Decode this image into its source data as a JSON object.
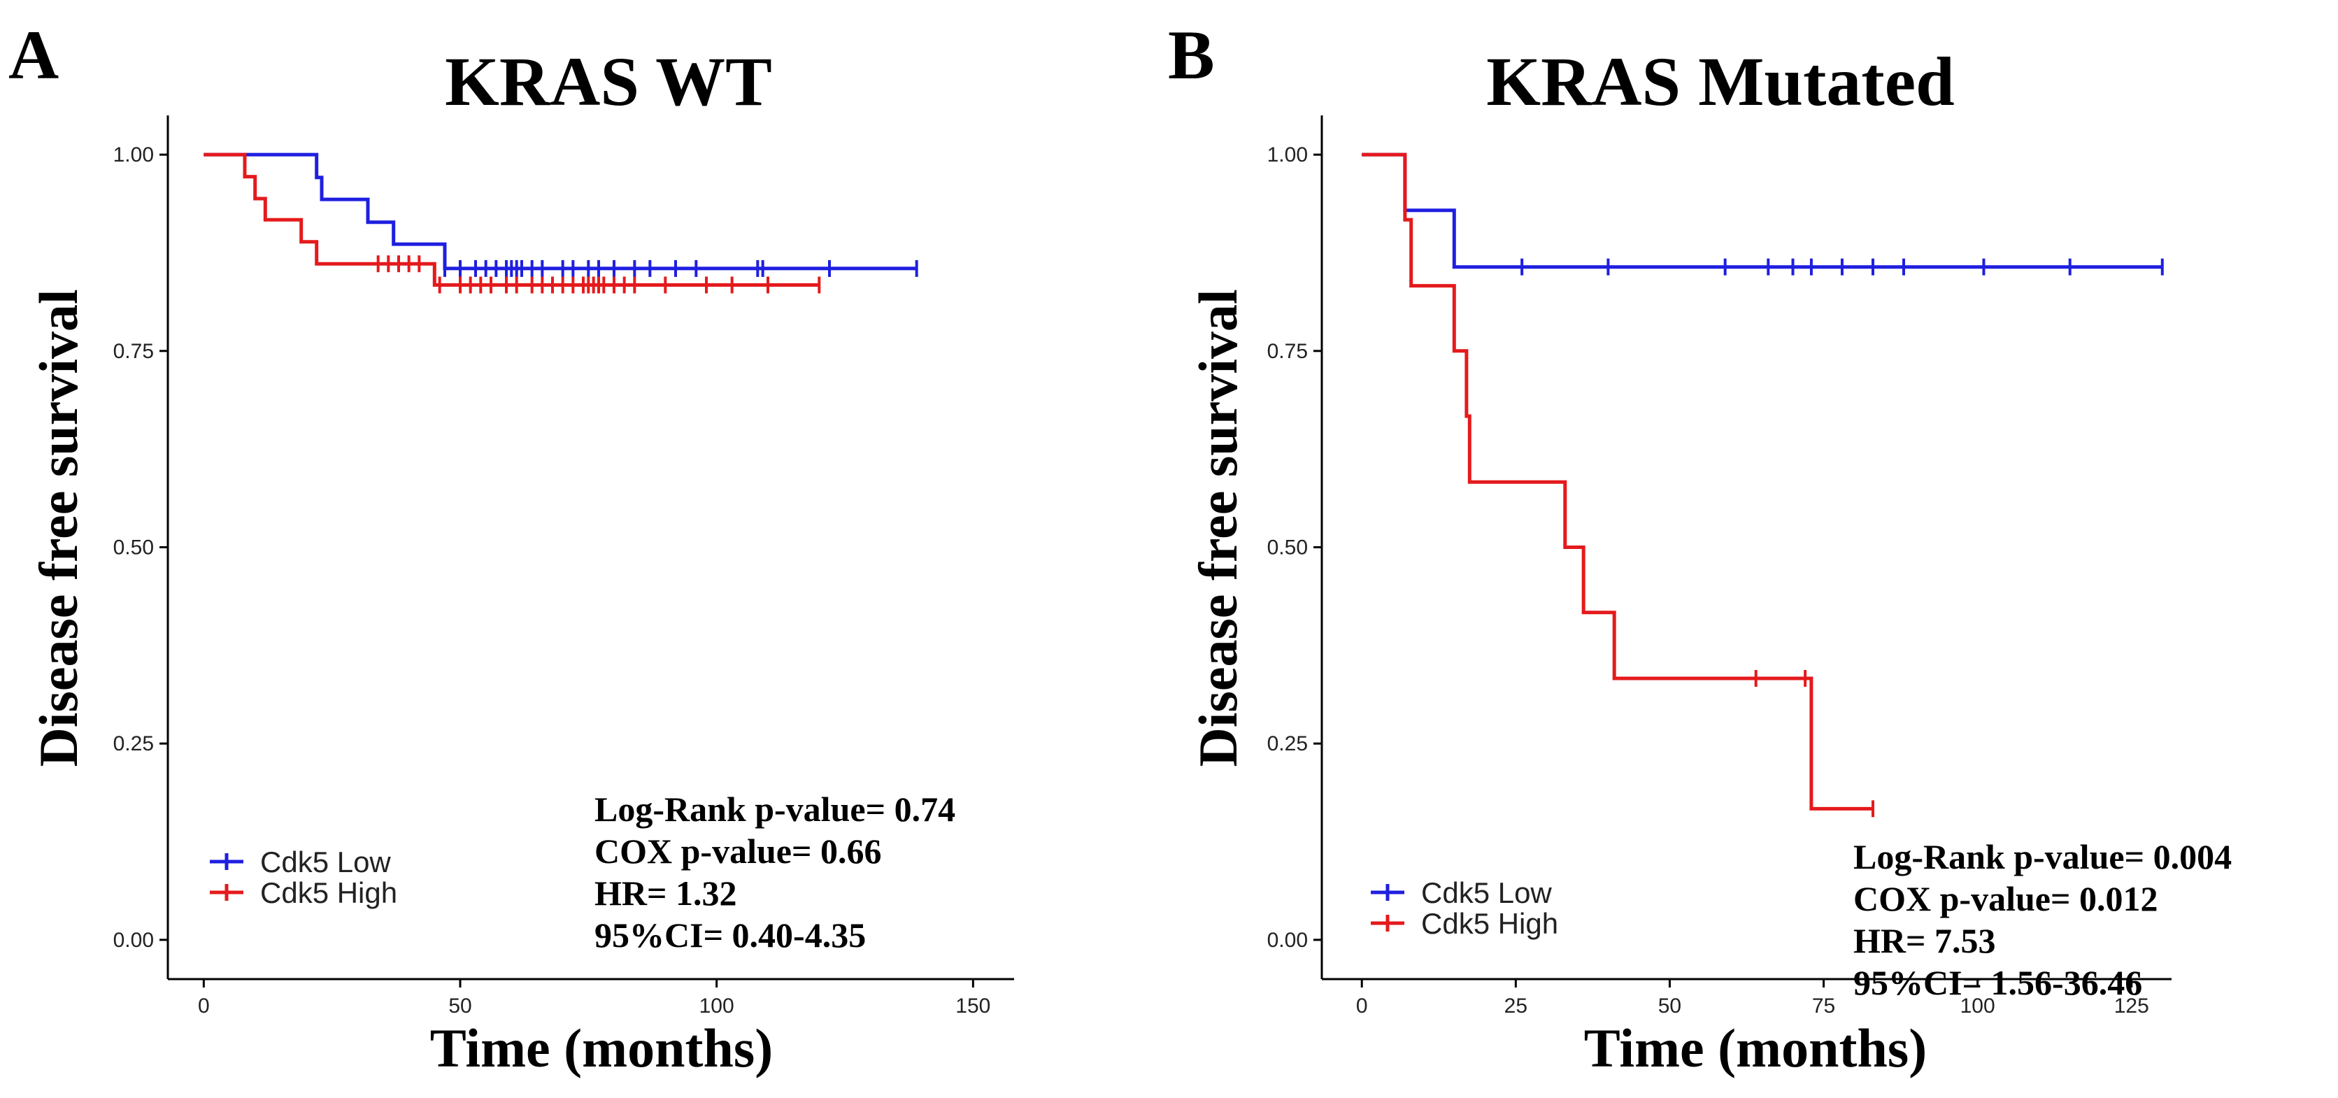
{
  "chart_data": [
    {
      "type": "line",
      "panel": "A",
      "title": "KRAS WT",
      "xlabel": "Time (months)",
      "ylabel": "Disease free survival",
      "xlim": [
        -7,
        158
      ],
      "ylim": [
        -0.05,
        1.05
      ],
      "x_ticks": [
        0,
        50,
        100,
        150
      ],
      "y_ticks": [
        0.0,
        0.25,
        0.5,
        0.75,
        1.0
      ],
      "y_tick_labels": [
        "0.00",
        "0.25",
        "0.50",
        "0.75",
        "1.00"
      ],
      "series": [
        {
          "name": "Cdk5 Low",
          "color": "#1f1fe0",
          "steps": [
            [
              0,
              1.0
            ],
            [
              22,
              1.0
            ],
            [
              22,
              0.971
            ],
            [
              23,
              0.971
            ],
            [
              23,
              0.943
            ],
            [
              32,
              0.943
            ],
            [
              32,
              0.914
            ],
            [
              37,
              0.914
            ],
            [
              37,
              0.886
            ],
            [
              47,
              0.886
            ],
            [
              47,
              0.855
            ],
            [
              139,
              0.855
            ]
          ],
          "censor": [
            47,
            50,
            53,
            55,
            57,
            59,
            60,
            61,
            62,
            64,
            66,
            70,
            72,
            75,
            77,
            80,
            84,
            87,
            92,
            96,
            108,
            109,
            122,
            139
          ]
        },
        {
          "name": "Cdk5 High",
          "color": "#e41a1c",
          "steps": [
            [
              0,
              1.0
            ],
            [
              8,
              1.0
            ],
            [
              8,
              0.972
            ],
            [
              10,
              0.972
            ],
            [
              10,
              0.944
            ],
            [
              12,
              0.944
            ],
            [
              12,
              0.917
            ],
            [
              19,
              0.917
            ],
            [
              19,
              0.889
            ],
            [
              22,
              0.889
            ],
            [
              22,
              0.861
            ],
            [
              45,
              0.861
            ],
            [
              45,
              0.834
            ],
            [
              120,
              0.834
            ]
          ],
          "censor": [
            34,
            36,
            38,
            40,
            42,
            46,
            50,
            52,
            54,
            56,
            59,
            61,
            64,
            66,
            68,
            70,
            72,
            74,
            75,
            76,
            77,
            78,
            80,
            82,
            84,
            90,
            98,
            103,
            110,
            120
          ]
        }
      ],
      "legend": {
        "placement": "bottom-left",
        "entries": [
          "Cdk5 Low",
          "Cdk5 High"
        ]
      },
      "annotations": [
        "Log-Rank p-value= 0.74",
        "COX p-value= 0.66",
        "HR= 1.32",
        "95%CI= 0.40-4.35"
      ]
    },
    {
      "type": "line",
      "panel": "B",
      "title": "KRAS Mutated",
      "xlabel": "Time (months)",
      "ylabel": "Disease free survival",
      "xlim": [
        -6.5,
        131.5
      ],
      "ylim": [
        -0.05,
        1.05
      ],
      "x_ticks": [
        0,
        25,
        50,
        75,
        100,
        125
      ],
      "y_ticks": [
        0.0,
        0.25,
        0.5,
        0.75,
        1.0
      ],
      "y_tick_labels": [
        "0.00",
        "0.25",
        "0.50",
        "0.75",
        "1.00"
      ],
      "series": [
        {
          "name": "Cdk5 Low",
          "color": "#1f1fe0",
          "steps": [
            [
              0,
              1.0
            ],
            [
              7,
              1.0
            ],
            [
              7,
              0.929
            ],
            [
              15,
              0.929
            ],
            [
              15,
              0.857
            ],
            [
              130,
              0.857
            ]
          ],
          "censor": [
            26,
            40,
            59,
            66,
            70,
            73,
            78,
            83,
            88,
            101,
            115,
            130
          ]
        },
        {
          "name": "Cdk5 High",
          "color": "#e41a1c",
          "steps": [
            [
              0,
              1.0
            ],
            [
              7,
              1.0
            ],
            [
              7,
              0.917
            ],
            [
              8,
              0.917
            ],
            [
              8,
              0.833
            ],
            [
              15,
              0.833
            ],
            [
              15,
              0.75
            ],
            [
              17,
              0.75
            ],
            [
              17,
              0.667
            ],
            [
              17.5,
              0.667
            ],
            [
              17.5,
              0.583
            ],
            [
              33,
              0.583
            ],
            [
              33,
              0.5
            ],
            [
              36,
              0.5
            ],
            [
              36,
              0.417
            ],
            [
              41,
              0.417
            ],
            [
              41,
              0.333
            ],
            [
              73,
              0.333
            ],
            [
              73,
              0.167
            ],
            [
              83,
              0.167
            ]
          ],
          "censor": [
            64,
            72,
            83
          ]
        }
      ],
      "legend": {
        "placement": "bottom-left",
        "entries": [
          "Cdk5 Low",
          "Cdk5 High"
        ]
      },
      "annotations": [
        "Log-Rank p-value= 0.004",
        "COX p-value= 0.012",
        "HR= 7.53",
        "95%CI= 1.56-36.46"
      ]
    }
  ]
}
